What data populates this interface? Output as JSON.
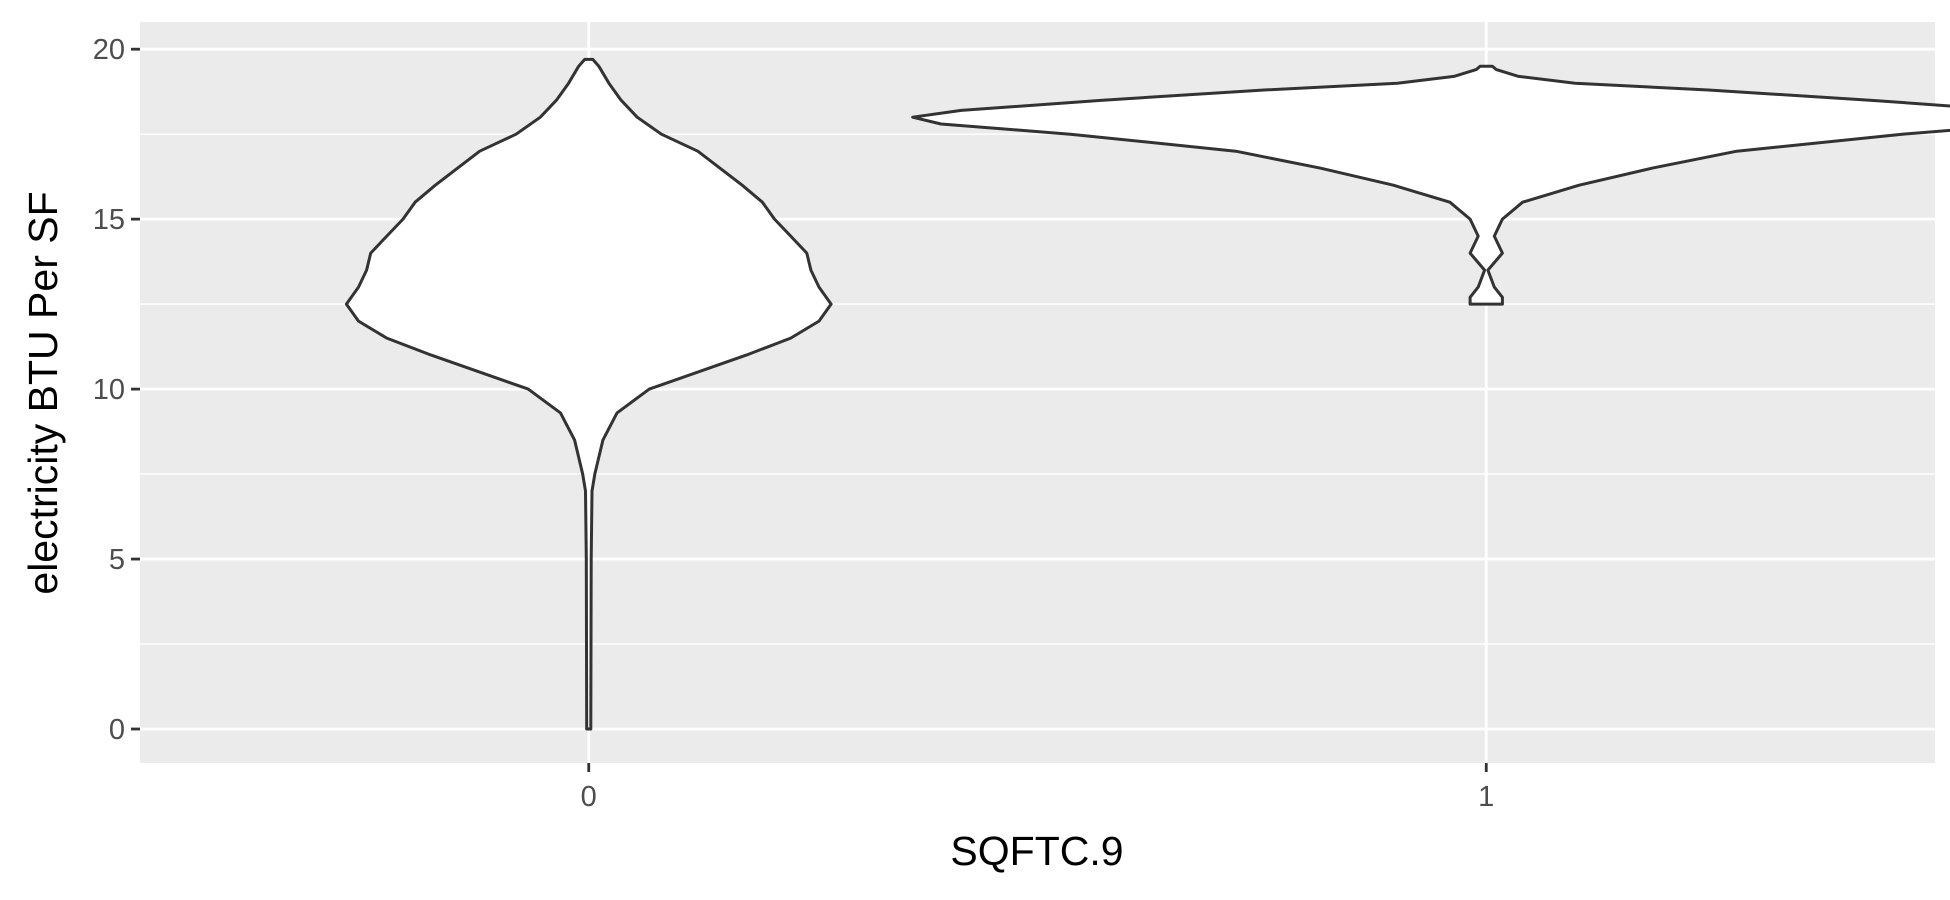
{
  "chart_data": {
    "type": "violin",
    "xlabel": "SQFTC.9",
    "ylabel": "electricity BTU Per SF",
    "categories": [
      "0",
      "1"
    ],
    "y_ticks": [
      "0",
      "5",
      "10",
      "15",
      "20"
    ],
    "ylim": [
      -1,
      20.8
    ],
    "grid": true,
    "legend": "none",
    "series": [
      {
        "category": "0",
        "y_min": 0.0,
        "y_max": 19.7,
        "density_profile": [
          [
            0.0,
            0.005
          ],
          [
            5.0,
            0.006
          ],
          [
            7.0,
            0.008
          ],
          [
            7.5,
            0.015
          ],
          [
            8.5,
            0.035
          ],
          [
            9.3,
            0.07
          ],
          [
            10.0,
            0.15
          ],
          [
            11.0,
            0.39
          ],
          [
            11.5,
            0.5
          ],
          [
            12.0,
            0.57
          ],
          [
            12.5,
            0.6
          ],
          [
            13.0,
            0.57
          ],
          [
            13.5,
            0.55
          ],
          [
            14.0,
            0.54
          ],
          [
            14.5,
            0.5
          ],
          [
            15.0,
            0.46
          ],
          [
            15.5,
            0.43
          ],
          [
            16.0,
            0.38
          ],
          [
            17.0,
            0.27
          ],
          [
            17.5,
            0.18
          ],
          [
            18.0,
            0.12
          ],
          [
            18.5,
            0.08
          ],
          [
            19.0,
            0.05
          ],
          [
            19.5,
            0.025
          ],
          [
            19.7,
            0.01
          ]
        ]
      },
      {
        "category": "1",
        "y_min": 12.5,
        "y_max": 19.5,
        "density_profile": [
          [
            12.5,
            0.04
          ],
          [
            12.7,
            0.04
          ],
          [
            13.0,
            0.02
          ],
          [
            13.5,
            0.004
          ],
          [
            14.0,
            0.04
          ],
          [
            14.5,
            0.02
          ],
          [
            15.0,
            0.04
          ],
          [
            15.5,
            0.09
          ],
          [
            16.0,
            0.23
          ],
          [
            16.5,
            0.41
          ],
          [
            17.0,
            0.62
          ],
          [
            17.5,
            1.03
          ],
          [
            17.8,
            1.35
          ],
          [
            18.0,
            1.42
          ],
          [
            18.2,
            1.3
          ],
          [
            18.5,
            0.95
          ],
          [
            18.8,
            0.55
          ],
          [
            19.0,
            0.22
          ],
          [
            19.2,
            0.08
          ],
          [
            19.4,
            0.025
          ],
          [
            19.5,
            0.015
          ]
        ]
      }
    ]
  }
}
